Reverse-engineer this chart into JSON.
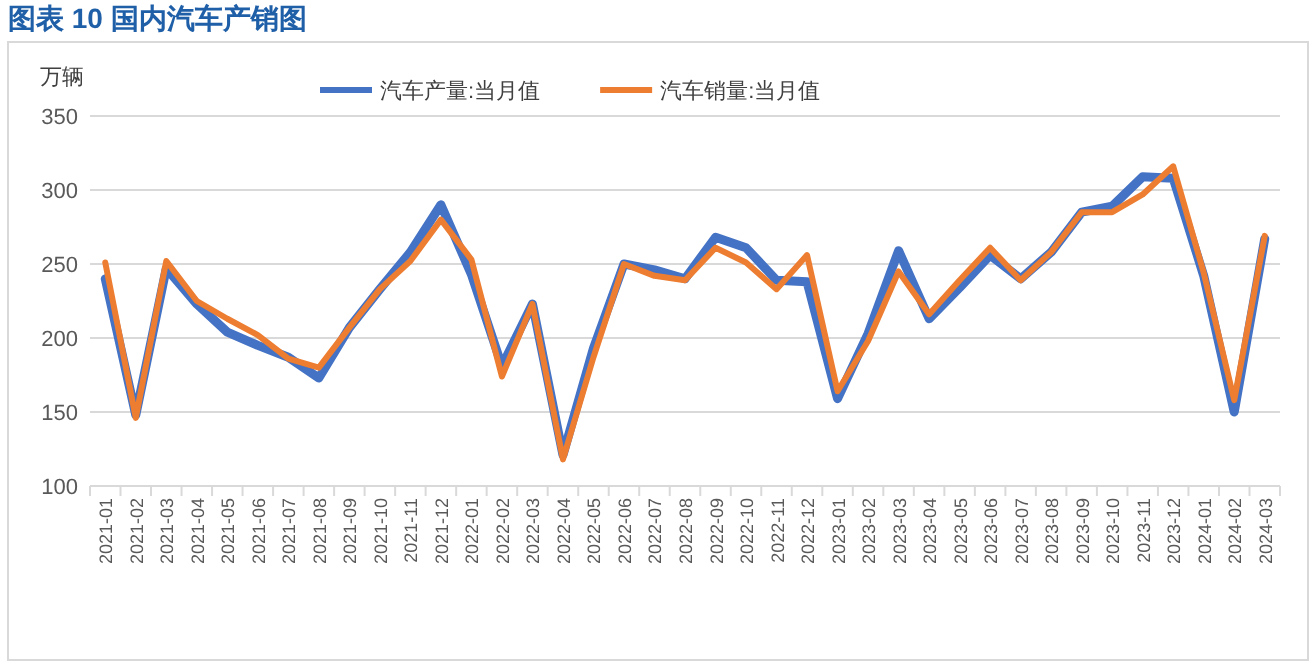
{
  "chart_data": {
    "type": "line",
    "title": "图表 10 国内汽车产销图",
    "ylabel": "万辆",
    "categories": [
      "2021-01",
      "2021-02",
      "2021-03",
      "2021-04",
      "2021-05",
      "2021-06",
      "2021-07",
      "2021-08",
      "2021-09",
      "2021-10",
      "2021-11",
      "2021-12",
      "2022-01",
      "2022-02",
      "2022-03",
      "2022-04",
      "2022-05",
      "2022-06",
      "2022-07",
      "2022-08",
      "2022-09",
      "2022-10",
      "2022-11",
      "2022-12",
      "2023-01",
      "2023-02",
      "2023-03",
      "2023-04",
      "2023-05",
      "2023-06",
      "2023-07",
      "2023-08",
      "2023-09",
      "2023-10",
      "2023-11",
      "2023-12",
      "2024-01",
      "2024-02",
      "2024-03"
    ],
    "series": [
      {
        "name": "汽车产量:当月值",
        "color": "#4472c4",
        "values": [
          240,
          148,
          247,
          223,
          204,
          195,
          187,
          173,
          207,
          233,
          258,
          290,
          243,
          181,
          223,
          121,
          193,
          250,
          246,
          240,
          268,
          261,
          239,
          238,
          159,
          203,
          259,
          213,
          234,
          256,
          240,
          258,
          285,
          289,
          309,
          308,
          242,
          150,
          267
        ]
      },
      {
        "name": "汽车销量:当月值",
        "color": "#ed7d31",
        "values": [
          251,
          146,
          252,
          225,
          213,
          202,
          186,
          180,
          207,
          233,
          252,
          280,
          253,
          174,
          223,
          118,
          187,
          250,
          242,
          239,
          261,
          251,
          233,
          256,
          164,
          198,
          245,
          216,
          239,
          261,
          239,
          258,
          285,
          285,
          297,
          316,
          244,
          158,
          269
        ]
      }
    ],
    "ylim": [
      100,
      350
    ],
    "yticks": [
      100,
      150,
      200,
      250,
      300,
      350
    ],
    "grid": "y",
    "legend": "top",
    "line_style": "solid",
    "marker": "none"
  }
}
